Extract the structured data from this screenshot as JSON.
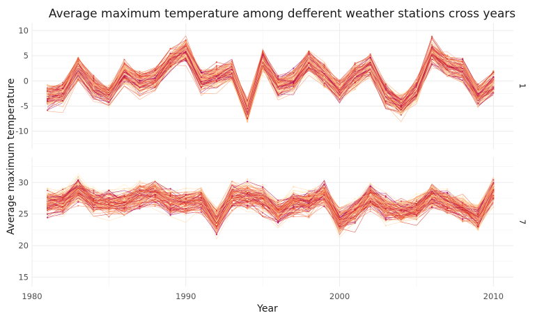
{
  "chart_data": {
    "type": "line",
    "title": "Average maximum temperature among defferent weather stations cross years",
    "xlabel": "Year",
    "ylabel": "Average maximum temperature",
    "x_ticks": [
      1980,
      1990,
      2000,
      2010
    ],
    "xlim": [
      1980,
      2011.3
    ],
    "grid": true,
    "palette": [
      "#fde8b0",
      "#fdd49e",
      "#fdbb84",
      "#fca66e",
      "#fc8d59",
      "#f77752",
      "#ef6548",
      "#e34a33",
      "#d7301f",
      "#c51b4a",
      "#b3005a",
      "#9e0a70"
    ],
    "panels": [
      {
        "strip_label": "1",
        "ylim": [
          -13.5,
          11.5
        ],
        "y_ticks": [
          10,
          5,
          0,
          -5,
          -10
        ],
        "mean_series": {
          "x": [
            1981,
            1982,
            1983,
            1984,
            1985,
            1986,
            1987,
            1988,
            1989,
            1990,
            1991,
            1992,
            1993,
            1994,
            1995,
            1996,
            1997,
            1998,
            1999,
            2000,
            2001,
            2002,
            2003,
            2004,
            2005,
            2006,
            2007,
            2008,
            2009,
            2010
          ],
          "y": [
            -3,
            -2.5,
            2.5,
            -1.5,
            -3,
            1.5,
            -0.5,
            0.5,
            4,
            6,
            0,
            1,
            2,
            -6,
            4,
            -1,
            0,
            4,
            1,
            -2,
            1,
            3,
            -3,
            -5,
            -2,
            5.5,
            3,
            2,
            -3,
            -0.5
          ]
        }
      },
      {
        "strip_label": "7",
        "ylim": [
          13.5,
          34
        ],
        "y_ticks": [
          30,
          25,
          20,
          15
        ],
        "mean_series": {
          "x": [
            1981,
            1982,
            1983,
            1984,
            1985,
            1986,
            1987,
            1988,
            1989,
            1990,
            1991,
            1992,
            1993,
            1994,
            1995,
            1996,
            1997,
            1998,
            1999,
            2000,
            2001,
            2002,
            2003,
            2004,
            2005,
            2006,
            2007,
            2008,
            2009,
            2010
          ],
          "y": [
            27,
            27,
            29,
            27,
            27,
            27,
            28,
            28.5,
            27,
            27,
            27.5,
            24,
            28,
            28,
            27.5,
            25.5,
            27,
            27,
            28.5,
            24,
            25.5,
            28,
            26,
            25.5,
            26,
            28,
            27,
            26,
            24.5,
            29
          ]
        }
      }
    ]
  }
}
